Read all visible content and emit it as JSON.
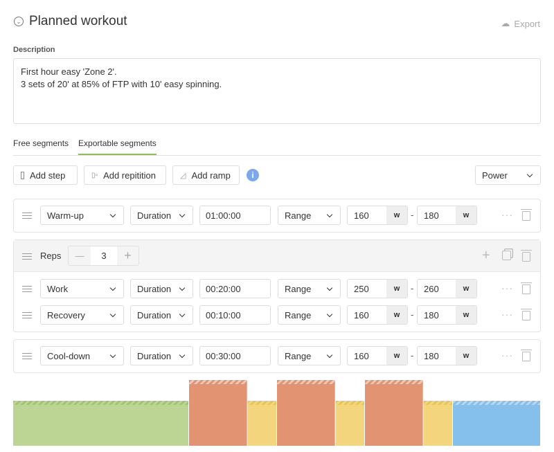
{
  "header": {
    "title": "Planned workout",
    "export_label": "Export"
  },
  "description": {
    "label": "Description",
    "value": "First hour easy 'Zone 2'.\n3 sets of 20' at 85% of FTP with 10' easy spinning."
  },
  "tabs": [
    {
      "label": "Free segments",
      "active": false
    },
    {
      "label": "Exportable segments",
      "active": true
    }
  ],
  "toolbar": {
    "add_step": "Add step",
    "add_repetition": "Add repitition",
    "add_ramp": "Add ramp",
    "info": "i",
    "metric": "Power"
  },
  "steps": {
    "warmup": {
      "type": "Warm-up",
      "measure": "Duration",
      "duration": "01:00:00",
      "target": "Range",
      "low": "160",
      "high": "180",
      "unit": "w"
    },
    "reps": {
      "label": "Reps",
      "count": "3",
      "minus": "—",
      "plus": "+"
    },
    "work": {
      "type": "Work",
      "measure": "Duration",
      "duration": "00:20:00",
      "target": "Range",
      "low": "250",
      "high": "260",
      "unit": "w"
    },
    "recovery": {
      "type": "Recovery",
      "measure": "Duration",
      "duration": "00:10:00",
      "target": "Range",
      "low": "160",
      "high": "180",
      "unit": "w"
    },
    "cooldown": {
      "type": "Cool-down",
      "measure": "Duration",
      "duration": "00:30:00",
      "target": "Range",
      "low": "160",
      "high": "180",
      "unit": "w"
    }
  },
  "range_separator": "-",
  "more_label": "···",
  "chart_data": {
    "type": "bar",
    "segments": [
      {
        "name": "Warm-up",
        "minutes": 60,
        "low": 160,
        "high": 180,
        "color": "#bcd595",
        "stripe": "#a3c46f"
      },
      {
        "name": "Work",
        "minutes": 20,
        "low": 250,
        "high": 260,
        "color": "#e29472",
        "stripe": "#f4c7b2"
      },
      {
        "name": "Recovery",
        "minutes": 10,
        "low": 160,
        "high": 180,
        "color": "#f2d57d",
        "stripe": "#e8c457"
      },
      {
        "name": "Work",
        "minutes": 20,
        "low": 250,
        "high": 260,
        "color": "#e29472",
        "stripe": "#f4c7b2"
      },
      {
        "name": "Recovery",
        "minutes": 10,
        "low": 160,
        "high": 180,
        "color": "#f2d57d",
        "stripe": "#e8c457"
      },
      {
        "name": "Work",
        "minutes": 20,
        "low": 250,
        "high": 260,
        "color": "#e29472",
        "stripe": "#f4c7b2"
      },
      {
        "name": "Recovery",
        "minutes": 10,
        "low": 160,
        "high": 180,
        "color": "#f2d57d",
        "stripe": "#e8c457"
      },
      {
        "name": "Cool-down",
        "minutes": 30,
        "low": 160,
        "high": 180,
        "color": "#85bfeb",
        "stripe": "#b6d9f4"
      }
    ]
  }
}
